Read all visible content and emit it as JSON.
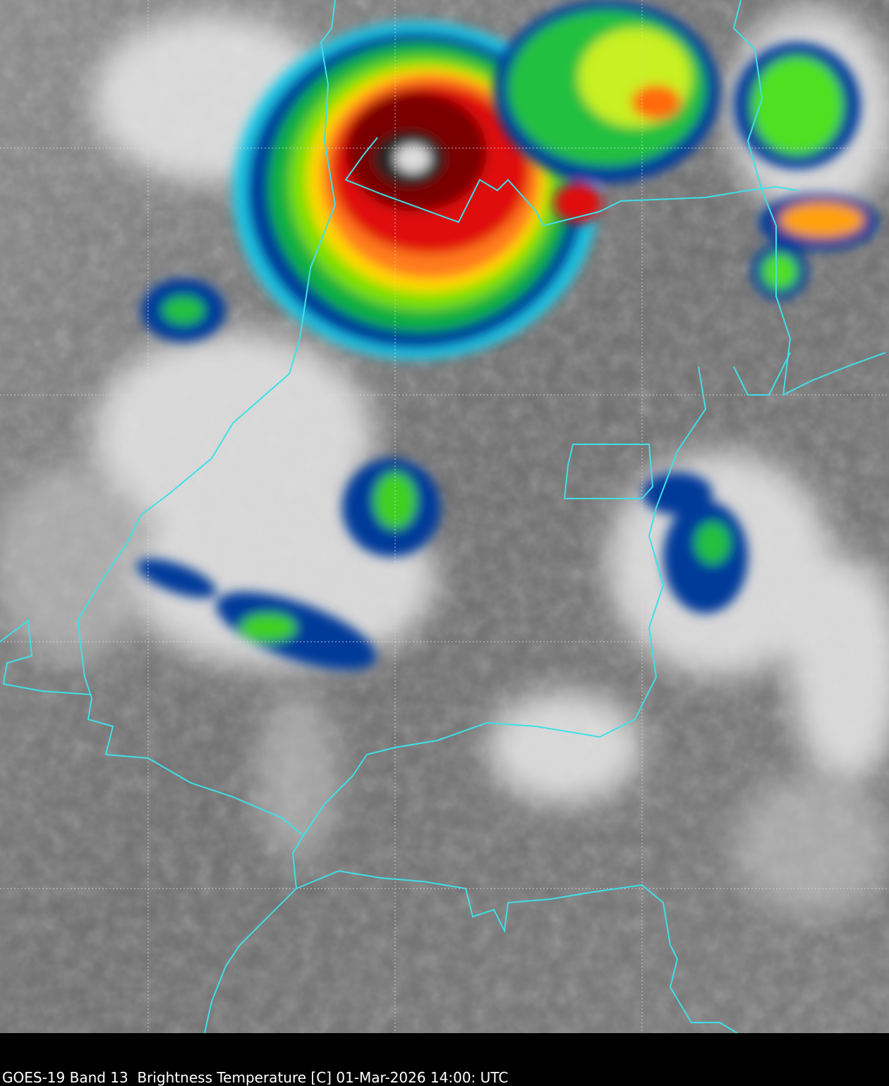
{
  "caption": "GOES-19 Band 13  Brightness Temperature [C] 01-Mar-2026 14:00: UTC"
}
